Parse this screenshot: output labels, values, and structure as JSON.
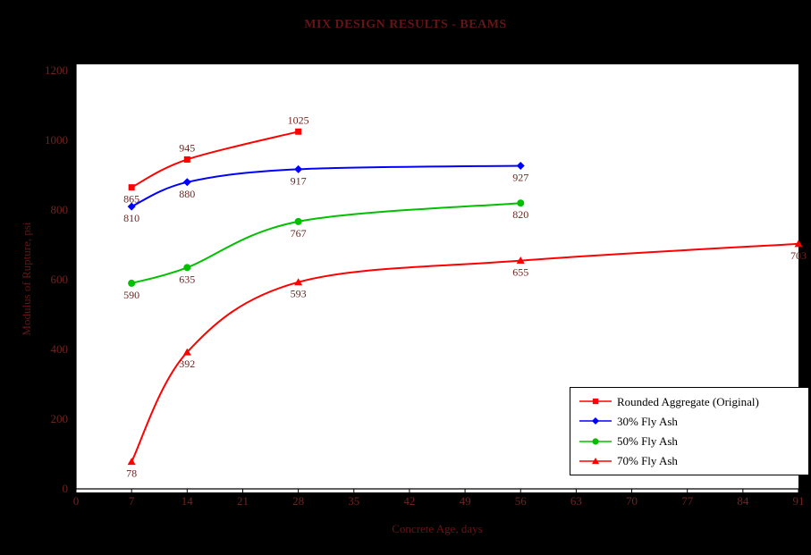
{
  "page": {
    "background": "#000000"
  },
  "chart_data": {
    "type": "line",
    "title": "MIX DESIGN RESULTS - BEAMS",
    "xlabel": "Concrete Age, days",
    "ylabel": "Modulus of Rupture, psi",
    "xlim": [
      0,
      91
    ],
    "ylim": [
      0,
      1200
    ],
    "x_ticks": [
      0,
      7,
      14,
      21,
      28,
      35,
      42,
      49,
      56,
      63,
      70,
      77,
      84,
      91
    ],
    "y_ticks": [
      0,
      200,
      400,
      600,
      800,
      1000,
      1200
    ],
    "grid": false,
    "legend_position": "inside-bottom-right",
    "series": [
      {
        "name": "Rounded Aggregate (Original)",
        "color": "#ff0000",
        "marker": "square",
        "x": [
          7,
          14,
          28
        ],
        "y": [
          865,
          945,
          1025
        ],
        "point_labels": [
          "865",
          "945",
          "1025"
        ],
        "label_side": [
          "below",
          "above",
          "above"
        ]
      },
      {
        "name": "30% Fly Ash",
        "color": "#0000ff",
        "marker": "diamond",
        "x": [
          7,
          14,
          28,
          56
        ],
        "y": [
          810,
          880,
          917,
          927
        ],
        "point_labels": [
          "810",
          "880",
          "917",
          "927"
        ],
        "label_side": [
          "below",
          "below",
          "below",
          "below"
        ]
      },
      {
        "name": "50% Fly Ash",
        "color": "#00c000",
        "marker": "circle",
        "x": [
          7,
          14,
          28,
          56
        ],
        "y": [
          590,
          635,
          767,
          820
        ],
        "point_labels": [
          "590",
          "635",
          "767",
          "820"
        ],
        "label_side": [
          "below",
          "below",
          "below",
          "below"
        ]
      },
      {
        "name": "70% Fly Ash",
        "color": "#ff0000",
        "marker": "triangle",
        "x": [
          7,
          14,
          28,
          56,
          91
        ],
        "y": [
          78,
          392,
          593,
          655,
          703
        ],
        "point_labels": [
          "78",
          "392",
          "593",
          "655",
          "703"
        ],
        "label_side": [
          "below",
          "below",
          "below",
          "below",
          "below"
        ]
      }
    ],
    "colors": {
      "background": "#000000",
      "plot_background": "#ffffff",
      "axis": "#000000",
      "tick_label": "#6e2420",
      "data_label": "#6e2420",
      "title_text": "#641616",
      "axis_label_text": "#641616",
      "legend_text": "#000000",
      "legend_background": "#ffffff",
      "legend_border": "#000000"
    }
  }
}
